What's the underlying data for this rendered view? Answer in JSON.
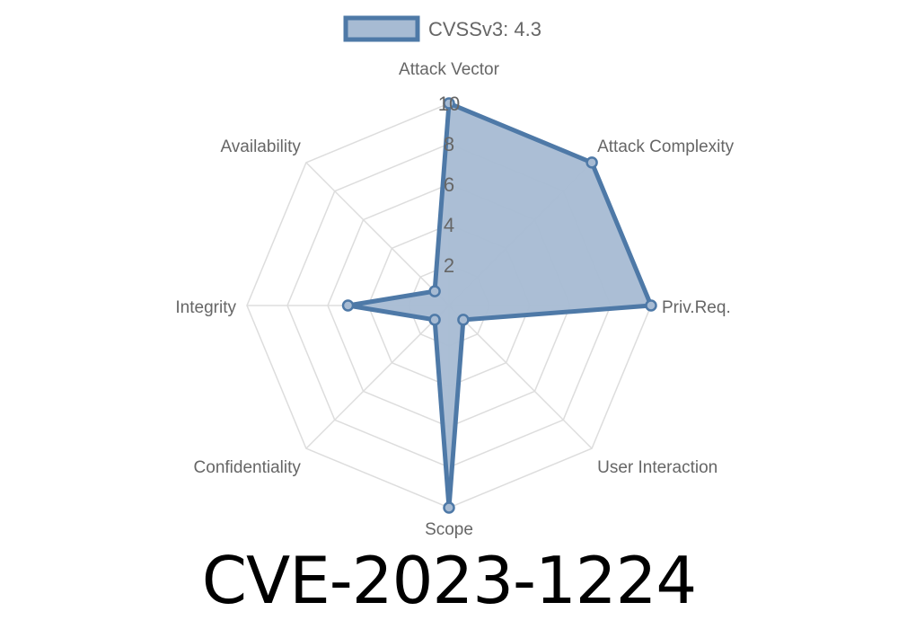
{
  "chart_data": {
    "type": "radar",
    "title": "CVE-2023-1224",
    "categories": [
      "Attack Vector",
      "Attack Complexity",
      "Priv.Req.",
      "User Interaction",
      "Scope",
      "Confidentiality",
      "Integrity",
      "Availability"
    ],
    "series": [
      {
        "name": "CVSSv3: 4.3",
        "values": [
          10,
          10,
          10,
          1,
          10,
          1,
          5,
          1
        ]
      }
    ],
    "rlim": [
      0,
      10
    ],
    "ticks": [
      "2",
      "4",
      "6",
      "8",
      "10"
    ],
    "grid": true,
    "legend": "top",
    "colors": {
      "line": "#4e79a7",
      "fill": "#a7bbd3",
      "grid": "#dddddd",
      "text": "#666666"
    }
  }
}
